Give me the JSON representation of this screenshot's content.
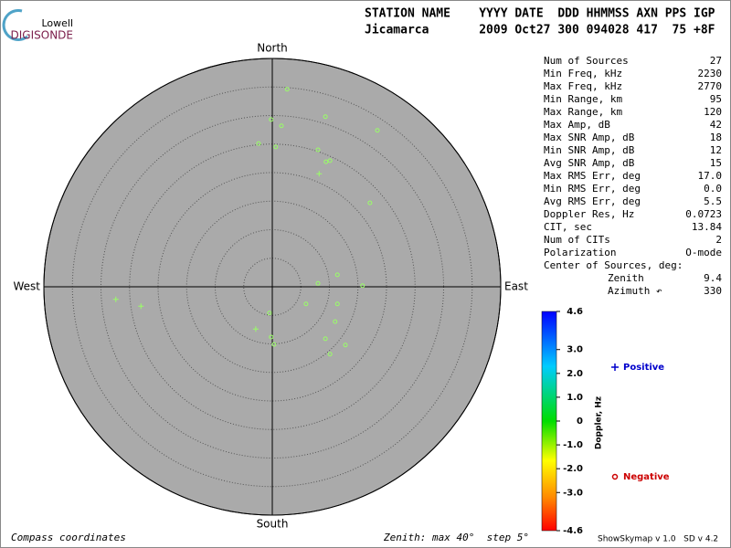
{
  "logo": {
    "top": "Lowell",
    "bottom": "DIGISONDE"
  },
  "header": {
    "labels": "STATION NAME    YYYY DATE  DDD HHMMSS AXN PPS IGP",
    "values": "Jicamarca       2009 Oct27 300 094028 417  75 +8F"
  },
  "stats": [
    [
      "Num of Sources",
      "27"
    ],
    [
      "Min Freq, kHz",
      "2230"
    ],
    [
      "Max Freq, kHz",
      "2770"
    ],
    [
      "Min Range, km",
      "95"
    ],
    [
      "Max Range, km",
      "120"
    ],
    [
      "Max Amp, dB",
      "42"
    ],
    [
      "Max SNR Amp, dB",
      "18"
    ],
    [
      "Min SNR Amp, dB",
      "12"
    ],
    [
      "Avg SNR Amp, dB",
      "15"
    ],
    [
      "Max RMS Err, deg",
      "17.0"
    ],
    [
      "Min RMS Err, deg",
      "0.0"
    ],
    [
      "Avg RMS Err, deg",
      "5.5"
    ],
    [
      "Doppler Res, Hz",
      "0.0723"
    ],
    [
      "CIT, sec",
      "13.84"
    ],
    [
      "Num of CITs",
      "2"
    ],
    [
      "Polarization",
      "O-mode"
    ],
    [
      "Center of Sources, deg:",
      ""
    ],
    [
      "Zenith",
      "9.4"
    ],
    [
      "Azimuth ↶",
      "330"
    ]
  ],
  "footer": {
    "left": "Compass coordinates",
    "middle": "Zenith: max 40°  step 5°",
    "right": "ShowSkymap v 1.0   SD v 4.2"
  },
  "chart_data": {
    "type": "skymap",
    "directions": {
      "north": "North",
      "south": "South",
      "east": "East",
      "west": "West"
    },
    "zlim": [
      0,
      40
    ],
    "zticks": [
      5,
      10,
      15,
      20,
      25,
      30,
      35,
      40
    ],
    "series": [
      {
        "name": "Positive",
        "marker": "plus",
        "color": "#99ff66",
        "legend_color": "#0000cc",
        "x": [
          8.2,
          -27.4,
          -23.0,
          -2.9
        ],
        "y": [
          19.8,
          -2.2,
          -3.4,
          -7.4
        ]
      },
      {
        "name": "Negative",
        "marker": "circle",
        "color": "#99ff66",
        "legend_color": "#cc0000",
        "x": [
          2.6,
          -0.2,
          1.6,
          9.3,
          18.4,
          -2.4,
          0.6,
          8.0,
          9.4,
          10.1,
          17.1,
          11.4,
          8.0,
          15.8,
          5.9,
          11.4,
          -0.5,
          11.0,
          -0.2,
          0.3,
          9.3,
          12.8,
          10.1
        ],
        "y": [
          34.6,
          29.3,
          28.2,
          29.8,
          27.4,
          25.1,
          24.5,
          24.0,
          21.9,
          22.1,
          14.7,
          2.1,
          0.6,
          0.2,
          -3.0,
          -3.0,
          -4.6,
          -6.1,
          -8.8,
          -10.1,
          -9.1,
          -10.2,
          -11.8
        ]
      }
    ],
    "colorbar": {
      "label": "Doppler, Hz",
      "lim": [
        -4.6,
        4.6
      ],
      "ticks": [
        4.6,
        {
          "value": 3,
          "label": "3.0"
        },
        {
          "value": 2,
          "label": "2.0"
        },
        {
          "value": 1,
          "label": "1.0"
        },
        0,
        {
          "value": -1,
          "label": "-1.0"
        },
        {
          "value": -2,
          "label": "-2.0"
        },
        {
          "value": -3,
          "label": "-3.0"
        },
        -4.6
      ]
    }
  }
}
